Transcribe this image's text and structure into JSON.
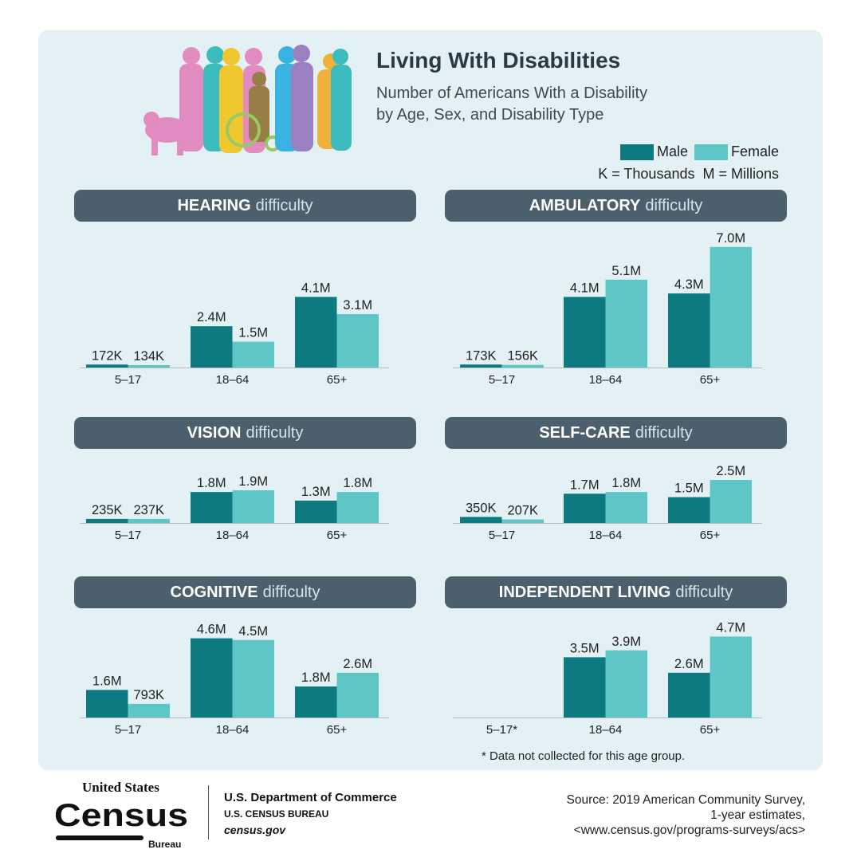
{
  "title": "Living With Disabilities",
  "subtitle_lines": [
    "Number of Americans With a Disability",
    "by Age, Sex, and Disability Type"
  ],
  "legend": {
    "male": "Male",
    "female": "Female",
    "units": "K = Thousands  M = Millions"
  },
  "colors": {
    "male": "#0c7a80",
    "female": "#5fc6c8",
    "header": "#4b606c",
    "panel": "#e3f1f4"
  },
  "footnote": "* Data not collected for this age group.",
  "footer": {
    "logo_text": [
      "United States",
      "Census",
      "Bureau"
    ],
    "dept": "U.S. Department of Commerce",
    "bureau": "U.S. CENSUS BUREAU",
    "site": "census.gov",
    "source_lines": [
      "Source: 2019 American Community Survey,",
      "1-year estimates,",
      "<www.census.gov/programs-surveys/acs>"
    ]
  },
  "chart_data": [
    {
      "type": "bar",
      "title_bold": "HEARING",
      "title_rest": "difficulty",
      "categories": [
        "5–17",
        "18–64",
        "65+"
      ],
      "unit": "millions",
      "series": [
        {
          "name": "Male",
          "values": [
            0.172,
            2.4,
            4.1
          ],
          "labels": [
            "172K",
            "2.4M",
            "4.1M"
          ]
        },
        {
          "name": "Female",
          "values": [
            0.134,
            1.5,
            3.1
          ],
          "labels": [
            "134K",
            "1.5M",
            "3.1M"
          ]
        }
      ]
    },
    {
      "type": "bar",
      "title_bold": "AMBULATORY",
      "title_rest": "difficulty",
      "categories": [
        "5–17",
        "18–64",
        "65+"
      ],
      "unit": "millions",
      "series": [
        {
          "name": "Male",
          "values": [
            0.173,
            4.1,
            4.3
          ],
          "labels": [
            "173K",
            "4.1M",
            "4.3M"
          ]
        },
        {
          "name": "Female",
          "values": [
            0.156,
            5.1,
            7.0
          ],
          "labels": [
            "156K",
            "5.1M",
            "7.0M"
          ]
        }
      ]
    },
    {
      "type": "bar",
      "title_bold": "VISION",
      "title_rest": "difficulty",
      "categories": [
        "5–17",
        "18–64",
        "65+"
      ],
      "unit": "millions",
      "series": [
        {
          "name": "Male",
          "values": [
            0.235,
            1.8,
            1.3
          ],
          "labels": [
            "235K",
            "1.8M",
            "1.3M"
          ]
        },
        {
          "name": "Female",
          "values": [
            0.237,
            1.9,
            1.8
          ],
          "labels": [
            "237K",
            "1.9M",
            "1.8M"
          ]
        }
      ]
    },
    {
      "type": "bar",
      "title_bold": "SELF-CARE",
      "title_rest": "difficulty",
      "categories": [
        "5–17",
        "18–64",
        "65+"
      ],
      "unit": "millions",
      "series": [
        {
          "name": "Male",
          "values": [
            0.35,
            1.7,
            1.5
          ],
          "labels": [
            "350K",
            "1.7M",
            "1.5M"
          ]
        },
        {
          "name": "Female",
          "values": [
            0.207,
            1.8,
            2.5
          ],
          "labels": [
            "207K",
            "1.8M",
            "2.5M"
          ]
        }
      ]
    },
    {
      "type": "bar",
      "title_bold": "COGNITIVE",
      "title_rest": "difficulty",
      "categories": [
        "5–17",
        "18–64",
        "65+"
      ],
      "unit": "millions",
      "series": [
        {
          "name": "Male",
          "values": [
            1.6,
            4.6,
            1.8
          ],
          "labels": [
            "1.6M",
            "4.6M",
            "1.8M"
          ]
        },
        {
          "name": "Female",
          "values": [
            0.793,
            4.5,
            2.6
          ],
          "labels": [
            "793K",
            "4.5M",
            "2.6M"
          ]
        }
      ]
    },
    {
      "type": "bar",
      "title_bold": "INDEPENDENT LIVING",
      "title_rest": "difficulty",
      "categories": [
        "5–17*",
        "18–64",
        "65+"
      ],
      "unit": "millions",
      "series": [
        {
          "name": "Male",
          "values": [
            null,
            3.5,
            2.6
          ],
          "labels": [
            "",
            "3.5M",
            "2.6M"
          ]
        },
        {
          "name": "Female",
          "values": [
            null,
            3.9,
            4.7
          ],
          "labels": [
            "",
            "3.9M",
            "4.7M"
          ]
        }
      ]
    }
  ]
}
